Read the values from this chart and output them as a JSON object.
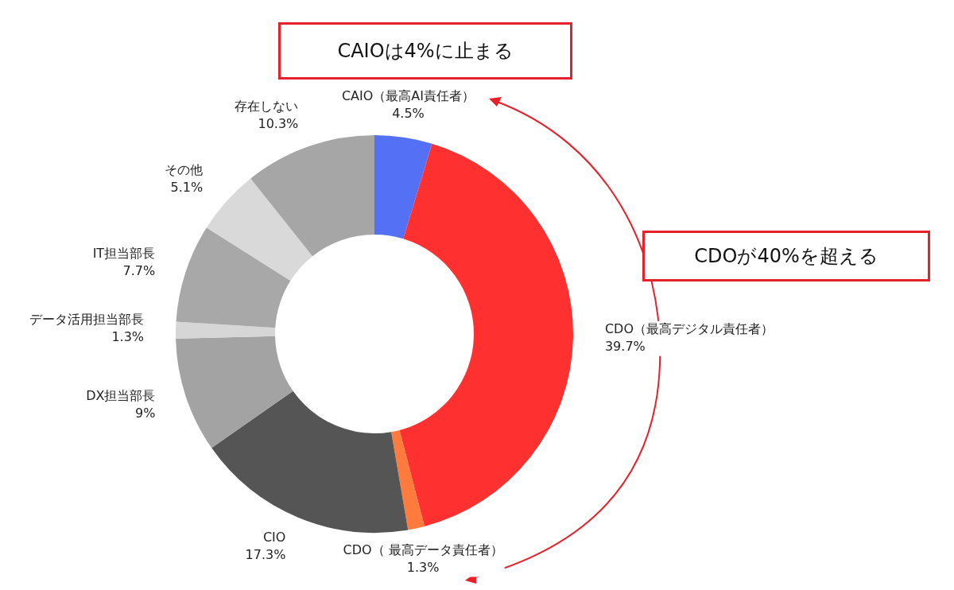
{
  "chart_data": {
    "type": "donut",
    "categories": [
      "CAIO（最高AI責任者）",
      "CDO（最高デジタル責任者）",
      "CDO（ 最高データ責任者）",
      "CIO",
      "DX担当部長",
      "データ活用担当部長",
      "IT担当部長",
      "その他",
      "存在しない"
    ],
    "values": [
      4.5,
      39.7,
      1.3,
      17.3,
      9,
      1.3,
      7.7,
      5.1,
      10.3
    ],
    "colors": [
      "#5470f5",
      "#ff3030",
      "#ff7a3d",
      "#555555",
      "#a3a3a3",
      "#d6d6d6",
      "#a8a8a8",
      "#d9d9d9",
      "#a6a6a6"
    ],
    "value_labels": [
      "4.5%",
      "39.7%",
      "1.3%",
      "17.3%",
      "9%",
      "1.3%",
      "7.7%",
      "5.1%",
      "10.3%"
    ],
    "legend": false,
    "annotations": [
      "CAIOは4%に止まる",
      "CDOが40%を超える"
    ]
  }
}
